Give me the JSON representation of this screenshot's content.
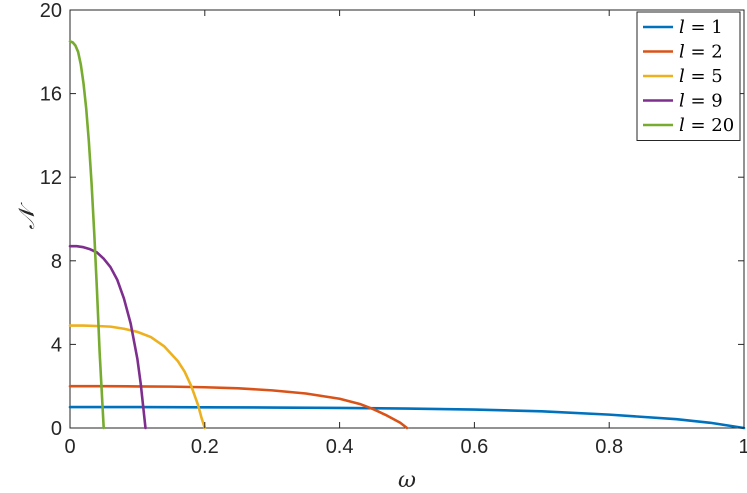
{
  "chart_data": {
    "type": "line",
    "xlabel": "ω",
    "ylabel": "𝒩",
    "xlim": [
      0,
      1
    ],
    "ylim": [
      0,
      20
    ],
    "x_ticks": [
      "0",
      "0.2",
      "0.4",
      "0.6",
      "0.8",
      "1"
    ],
    "y_ticks": [
      "0",
      "4",
      "8",
      "12",
      "16",
      "20"
    ],
    "grid": false,
    "legend_position": "top-right",
    "series": [
      {
        "name": "l = 1",
        "legend_var": "l",
        "legend_rest": " = 1",
        "color": "#0072BD",
        "x": [
          0,
          0.1,
          0.2,
          0.3,
          0.4,
          0.5,
          0.6,
          0.7,
          0.8,
          0.9,
          0.95,
          1.0
        ],
        "y": [
          1.0,
          1.0,
          0.99,
          0.98,
          0.96,
          0.93,
          0.88,
          0.8,
          0.64,
          0.42,
          0.25,
          0.0
        ]
      },
      {
        "name": "l = 2",
        "legend_var": "l",
        "legend_rest": " = 2",
        "color": "#D95319",
        "x": [
          0,
          0.05,
          0.1,
          0.15,
          0.2,
          0.25,
          0.3,
          0.35,
          0.4,
          0.43,
          0.45,
          0.47,
          0.49,
          0.5
        ],
        "y": [
          2.0,
          2.0,
          1.99,
          1.98,
          1.95,
          1.9,
          1.8,
          1.65,
          1.4,
          1.15,
          0.9,
          0.6,
          0.25,
          0.0
        ]
      },
      {
        "name": "l = 5",
        "legend_var": "l",
        "legend_rest": " = 5",
        "color": "#EDB120",
        "x": [
          0,
          0.02,
          0.04,
          0.06,
          0.08,
          0.1,
          0.12,
          0.14,
          0.16,
          0.17,
          0.18,
          0.19,
          0.195,
          0.2
        ],
        "y": [
          4.9,
          4.9,
          4.88,
          4.85,
          4.75,
          4.6,
          4.35,
          3.9,
          3.2,
          2.7,
          2.0,
          1.1,
          0.5,
          0.0
        ]
      },
      {
        "name": "l = 9",
        "legend_var": "l",
        "legend_rest": " = 9",
        "color": "#7E2F8E",
        "x": [
          0,
          0.01,
          0.02,
          0.03,
          0.04,
          0.05,
          0.06,
          0.07,
          0.08,
          0.09,
          0.1,
          0.105,
          0.11,
          0.112
        ],
        "y": [
          8.7,
          8.7,
          8.65,
          8.55,
          8.4,
          8.1,
          7.7,
          7.1,
          6.2,
          5.0,
          3.3,
          2.1,
          0.6,
          0.0
        ]
      },
      {
        "name": "l = 20",
        "legend_var": "l",
        "legend_rest": " = 20",
        "color": "#77AC30",
        "x": [
          0,
          0.004,
          0.008,
          0.012,
          0.016,
          0.02,
          0.024,
          0.028,
          0.032,
          0.036,
          0.04,
          0.044,
          0.048,
          0.05
        ],
        "y": [
          18.5,
          18.45,
          18.3,
          18.0,
          17.4,
          16.5,
          15.3,
          13.7,
          11.7,
          9.3,
          6.6,
          3.6,
          1.2,
          0.0
        ]
      }
    ]
  }
}
